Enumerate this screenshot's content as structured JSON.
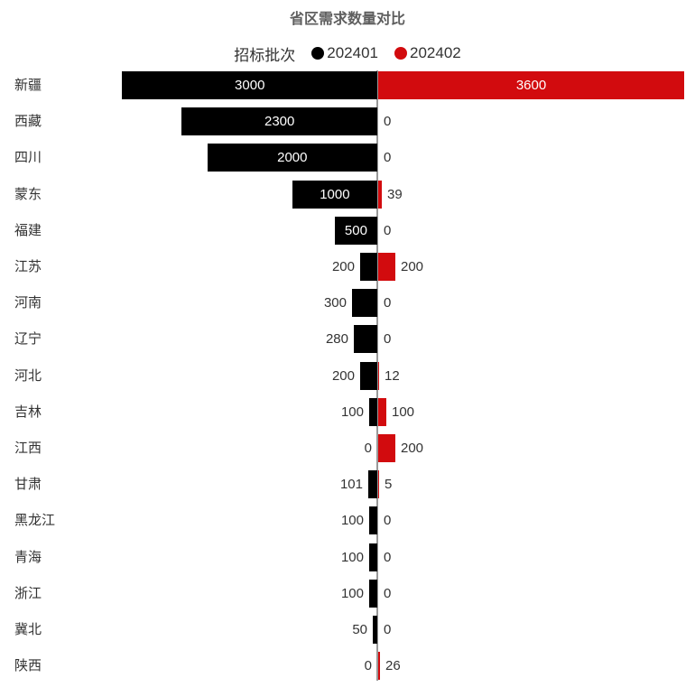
{
  "title": "省区需求数量对比",
  "legend": {
    "label": "招标批次",
    "items": [
      {
        "name": "202401",
        "color": "#000000"
      },
      {
        "name": "202402",
        "color": "#d20b0e"
      }
    ]
  },
  "colors": {
    "series_202401": "#000000",
    "series_202402": "#d20b0e",
    "axis_line": "#999999",
    "title_text": "#5e5e5e",
    "label_text": "#333333",
    "inside_value_text": "#ffffff"
  },
  "chart_data": {
    "type": "bar",
    "orientation": "horizontal-diverging",
    "title": "省区需求数量对比",
    "legend_title": "招标批次",
    "legend_position": "top-center",
    "grid": false,
    "categories": [
      "新疆",
      "西藏",
      "四川",
      "蒙东",
      "福建",
      "江苏",
      "河南",
      "辽宁",
      "河北",
      "吉林",
      "江西",
      "甘肃",
      "黑龙江",
      "青海",
      "浙江",
      "冀北",
      "陕西"
    ],
    "series": [
      {
        "name": "202401",
        "color": "#000000",
        "direction": "left",
        "values": [
          3000,
          2300,
          2000,
          1000,
          500,
          200,
          300,
          280,
          200,
          100,
          0,
          101,
          100,
          100,
          100,
          50,
          0
        ]
      },
      {
        "name": "202402",
        "color": "#d20b0e",
        "direction": "right",
        "values": [
          3600,
          0,
          0,
          39,
          0,
          200,
          0,
          0,
          12,
          100,
          200,
          5,
          0,
          0,
          0,
          0,
          26
        ]
      }
    ],
    "value_labels": "shown for every bar; white inside large bars, dark outside small bars",
    "xlim_left_max": 3000,
    "xlim_right_max": 3600
  }
}
